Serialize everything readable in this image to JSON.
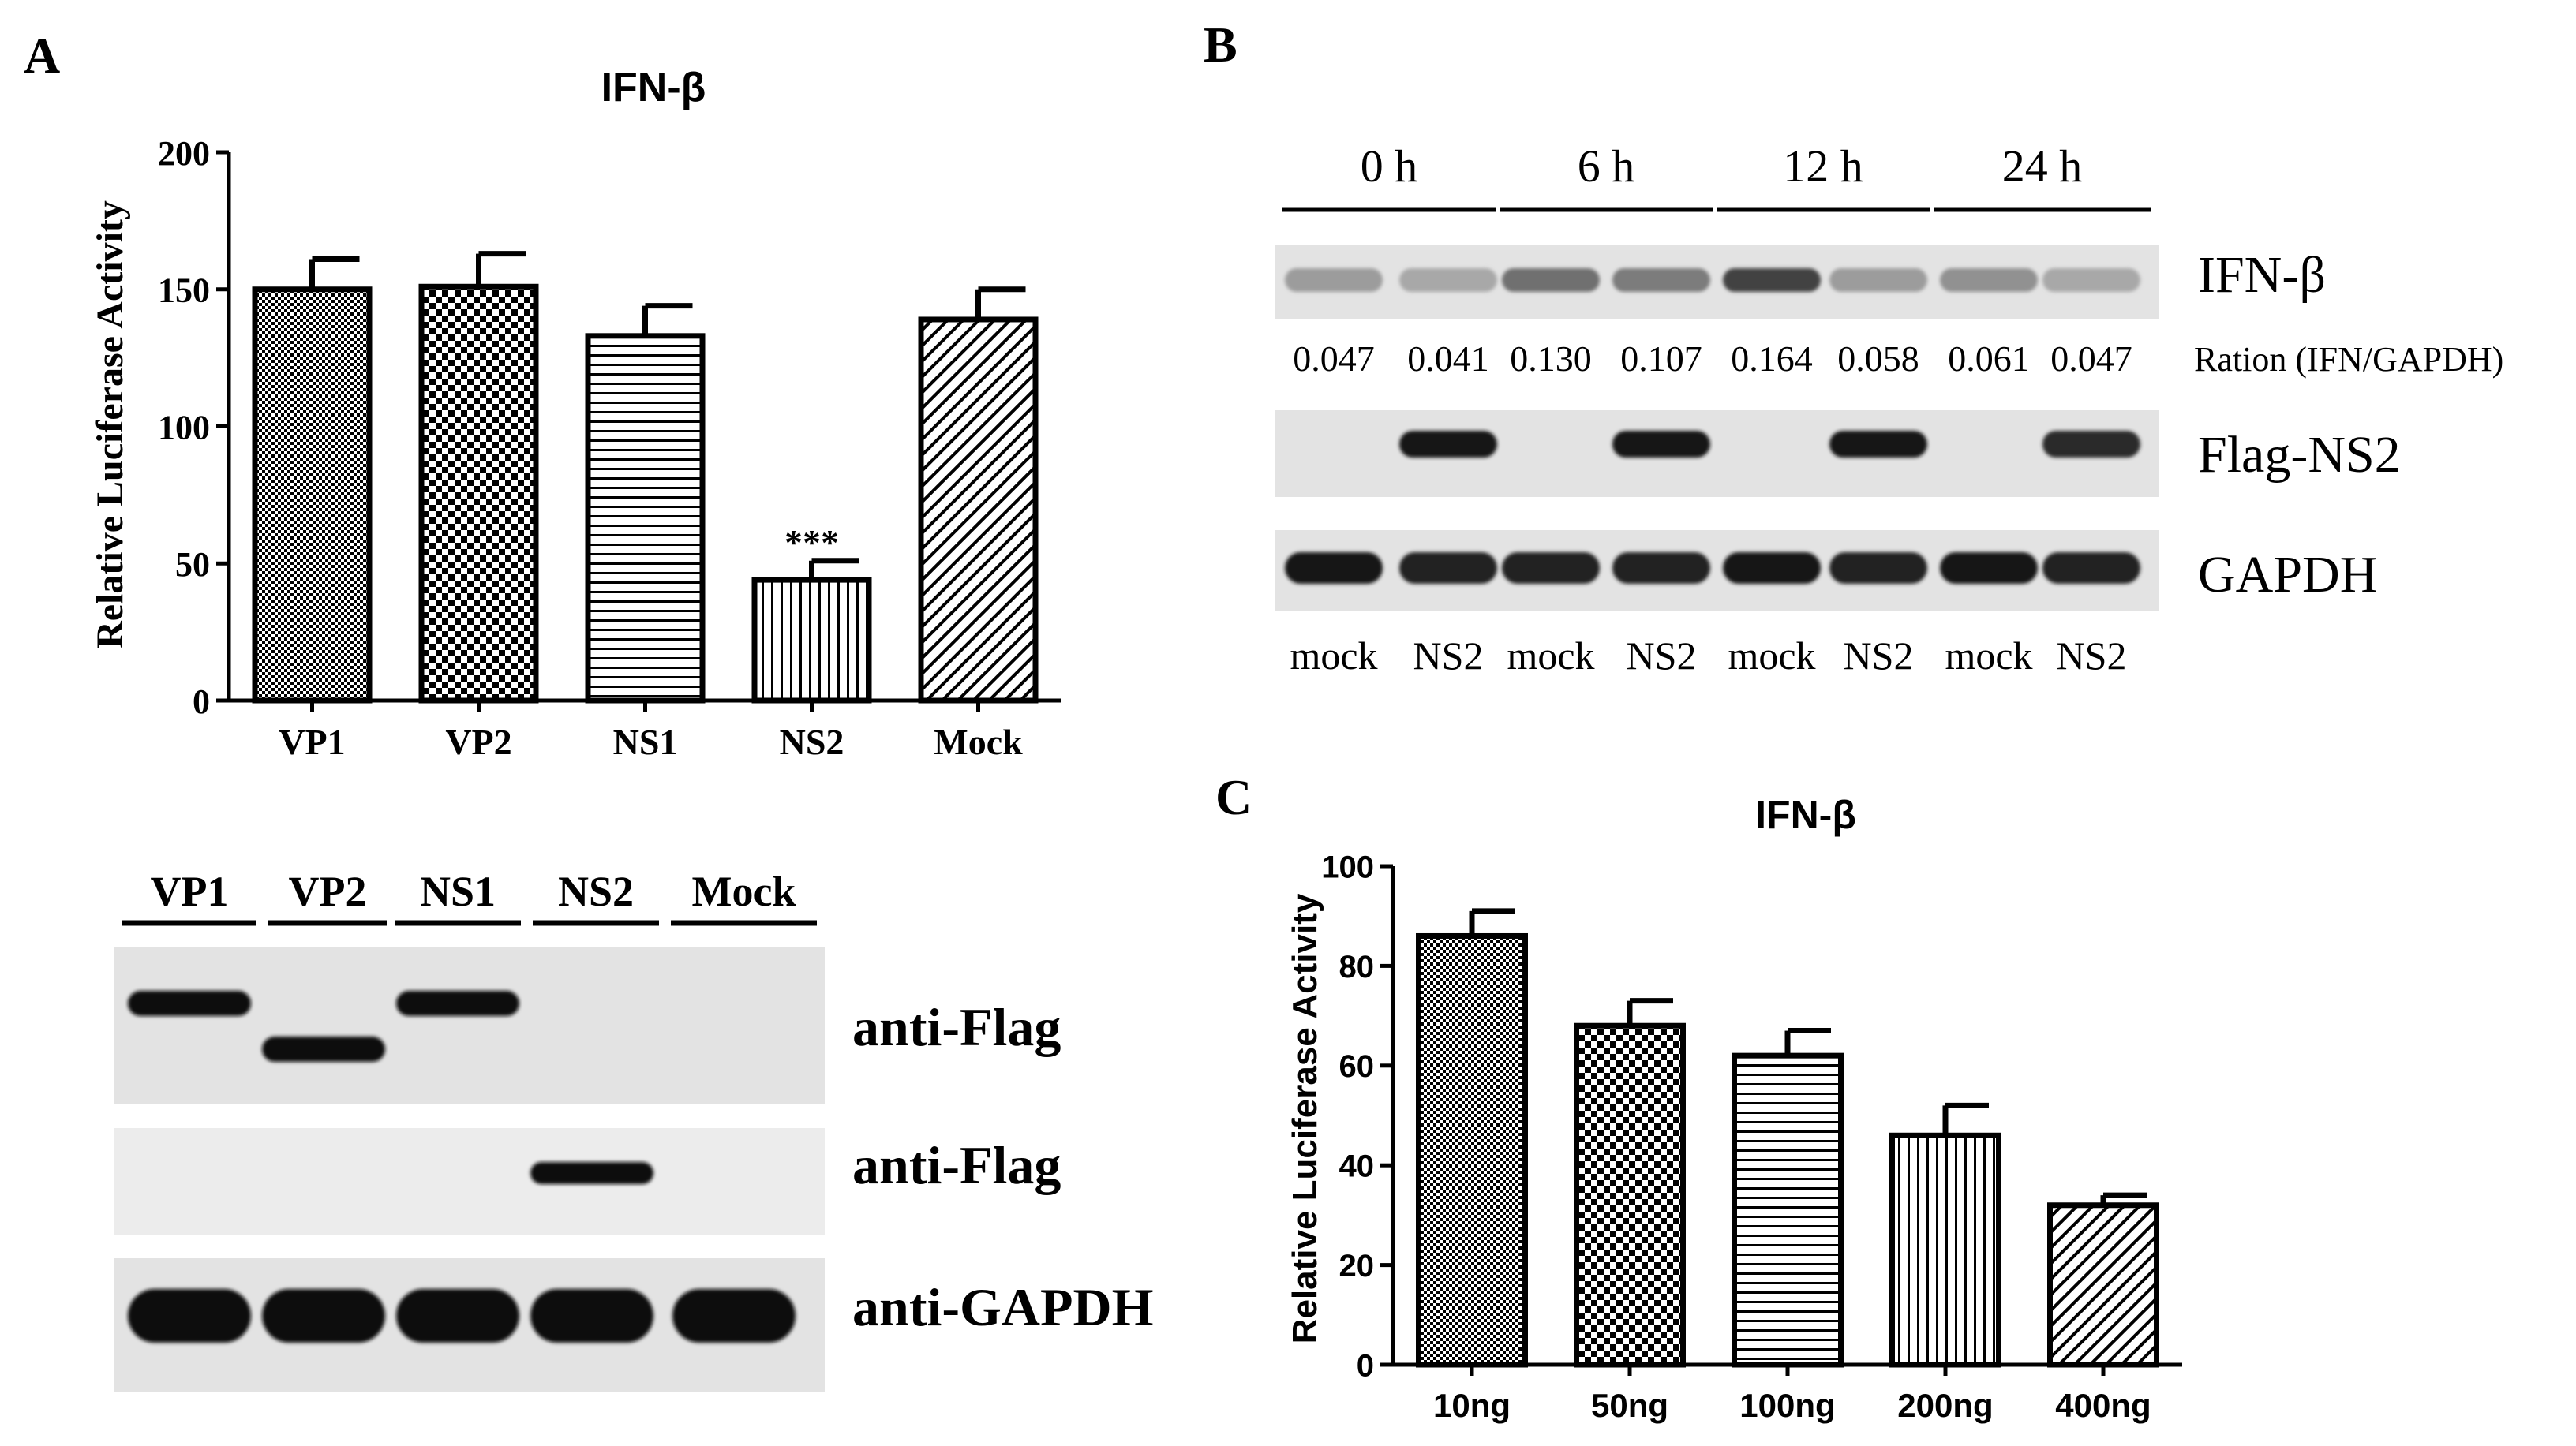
{
  "panels": {
    "a": "A",
    "b": "B",
    "c": "C"
  },
  "colors": {
    "ink": "#000000",
    "blot_bg": "#e3e3e3",
    "blot_bg_light": "#ececec",
    "band": "#0d0d0d"
  },
  "chart_data": [
    {
      "id": "panel-a-chart",
      "type": "bar",
      "title": "IFN-β",
      "xlabel": "",
      "ylabel": "Relative Luciferase Activity",
      "categories": [
        "VP1",
        "VP2",
        "NS1",
        "NS2",
        "Mock"
      ],
      "values": [
        150,
        151,
        133,
        44,
        139
      ],
      "errors": [
        11,
        12,
        11,
        7,
        11
      ],
      "patterns": [
        "fine-check",
        "check",
        "hlines",
        "vlines",
        "diag"
      ],
      "annotations": [
        {
          "category": "NS2",
          "text": "***"
        }
      ],
      "ylim": [
        0,
        200
      ],
      "yticks": [
        0,
        50,
        100,
        150,
        200
      ],
      "grid": false
    },
    {
      "id": "panel-c-chart",
      "type": "bar",
      "title": "IFN-β",
      "xlabel": "",
      "ylabel": "Relative Luciferase Activity",
      "categories": [
        "10ng",
        "50ng",
        "100ng",
        "200ng",
        "400ng"
      ],
      "values": [
        86,
        68,
        62,
        46,
        32
      ],
      "errors": [
        5,
        5,
        5,
        6,
        2
      ],
      "patterns": [
        "fine-check",
        "check",
        "hlines",
        "vlines",
        "diag"
      ],
      "ylim": [
        0,
        100
      ],
      "yticks": [
        0,
        20,
        40,
        60,
        80,
        100
      ],
      "grid": false
    }
  ],
  "blot_a": {
    "lane_labels": [
      "VP1",
      "VP2",
      "NS1",
      "NS2",
      "Mock"
    ],
    "rows": [
      {
        "label": "anti-Flag",
        "bands": [
          1,
          1,
          1,
          0,
          0
        ],
        "offsets": [
          0,
          1,
          0,
          0,
          0
        ]
      },
      {
        "label": "anti-Flag",
        "bands": [
          0,
          0,
          0,
          1,
          0
        ],
        "offsets": [
          0,
          0,
          0,
          0,
          0
        ]
      },
      {
        "label": "anti-GAPDH",
        "bands": [
          1,
          1,
          1,
          1,
          1
        ],
        "offsets": [
          0,
          0,
          0,
          0,
          0
        ]
      }
    ]
  },
  "blot_b": {
    "time_labels": [
      "0 h",
      "6 h",
      "12 h",
      "24 h"
    ],
    "lane_labels": [
      "mock",
      "NS2",
      "mock",
      "NS2",
      "mock",
      "NS2",
      "mock",
      "NS2"
    ],
    "ratios": [
      "0.047",
      "0.041",
      "0.130",
      "0.107",
      "0.164",
      "0.058",
      "0.061",
      "0.047"
    ],
    "ratio_label": "Ration (IFN/GAPDH)",
    "rows": [
      {
        "label": "IFN-β",
        "intensity": [
          0.35,
          0.3,
          0.55,
          0.5,
          0.75,
          0.35,
          0.4,
          0.3
        ]
      },
      {
        "label": "Flag-NS2",
        "intensity": [
          0,
          0.95,
          0,
          0.95,
          0,
          0.95,
          0,
          0.85
        ]
      },
      {
        "label": "GAPDH",
        "intensity": [
          0.95,
          0.9,
          0.9,
          0.9,
          0.95,
          0.9,
          0.95,
          0.9
        ]
      }
    ]
  }
}
